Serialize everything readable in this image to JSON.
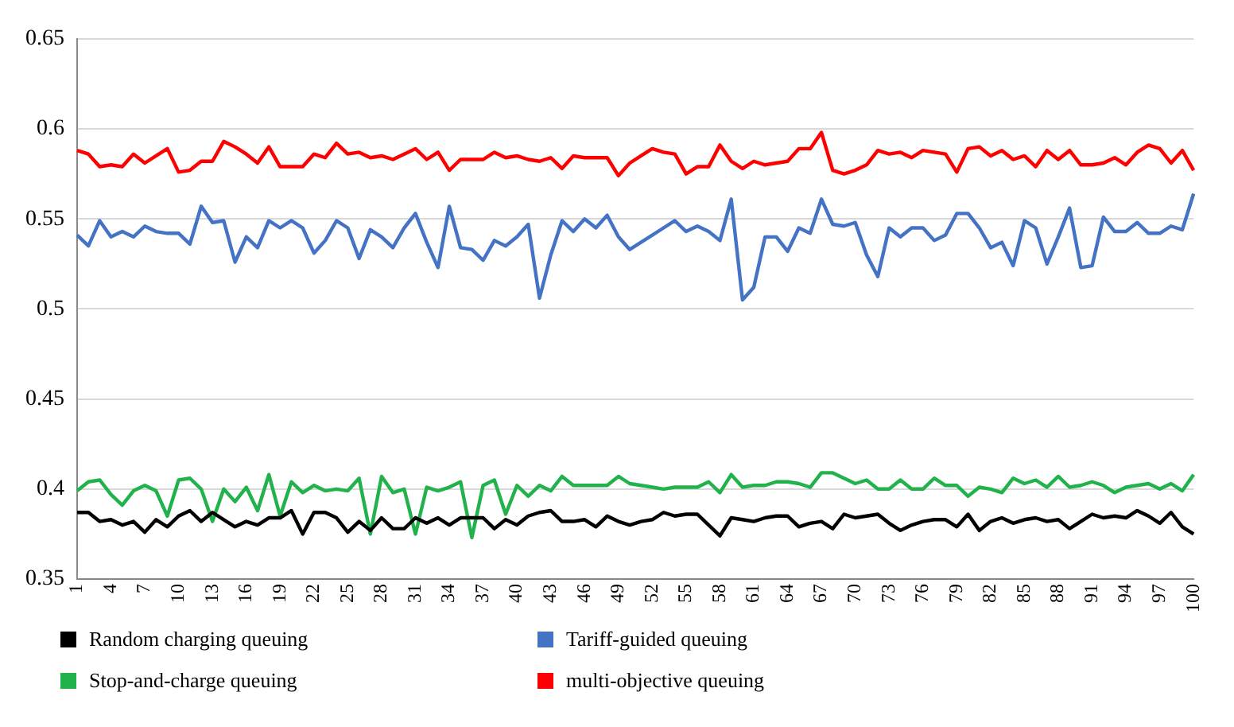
{
  "chart_data": {
    "type": "line",
    "categories": [
      "1",
      null,
      null,
      "4",
      null,
      null,
      "7",
      null,
      null,
      "10",
      null,
      null,
      "13",
      null,
      null,
      "16",
      null,
      null,
      "19",
      null,
      null,
      "22",
      null,
      null,
      "25",
      null,
      null,
      "28",
      null,
      null,
      "31",
      null,
      null,
      "34",
      null,
      null,
      "37",
      null,
      null,
      "40",
      null,
      null,
      "43",
      null,
      null,
      "46",
      null,
      null,
      "49",
      null,
      null,
      "52",
      null,
      null,
      "55",
      null,
      null,
      "58",
      null,
      null,
      "61",
      null,
      null,
      "64",
      null,
      null,
      "67",
      null,
      null,
      "70",
      null,
      null,
      "73",
      null,
      null,
      "76",
      null,
      null,
      "79",
      null,
      null,
      "82",
      null,
      null,
      "85",
      null,
      null,
      "88",
      null,
      null,
      "91",
      null,
      null,
      "94",
      null,
      null,
      "97",
      null,
      null,
      "100"
    ],
    "series": [
      {
        "name": "Random charging queuing",
        "color": "#000000",
        "values": [
          0.387,
          0.387,
          0.382,
          0.383,
          0.38,
          0.382,
          0.376,
          0.383,
          0.379,
          0.385,
          0.388,
          0.382,
          0.387,
          0.383,
          0.379,
          0.382,
          0.38,
          0.384,
          0.384,
          0.388,
          0.375,
          0.387,
          0.387,
          0.384,
          0.376,
          0.382,
          0.377,
          0.384,
          0.378,
          0.378,
          0.384,
          0.381,
          0.384,
          0.38,
          0.384,
          0.384,
          0.384,
          0.378,
          0.383,
          0.38,
          0.385,
          0.387,
          0.388,
          0.382,
          0.382,
          0.383,
          0.379,
          0.385,
          0.382,
          0.38,
          0.382,
          0.383,
          0.387,
          0.385,
          0.386,
          0.386,
          0.38,
          0.374,
          0.384,
          0.383,
          0.382,
          0.384,
          0.385,
          0.385,
          0.379,
          0.381,
          0.382,
          0.378,
          0.386,
          0.384,
          0.385,
          0.386,
          0.381,
          0.377,
          0.38,
          0.382,
          0.383,
          0.383,
          0.379,
          0.386,
          0.377,
          0.382,
          0.384,
          0.381,
          0.383,
          0.384,
          0.382,
          0.383,
          0.378,
          0.382,
          0.386,
          0.384,
          0.385,
          0.384,
          0.388,
          0.385,
          0.381,
          0.387,
          0.379,
          0.375
        ]
      },
      {
        "name": "Tariff-guided queuing",
        "color": "#4472c4",
        "values": [
          0.541,
          0.535,
          0.549,
          0.54,
          0.543,
          0.54,
          0.546,
          0.543,
          0.542,
          0.542,
          0.536,
          0.557,
          0.548,
          0.549,
          0.526,
          0.54,
          0.534,
          0.549,
          0.545,
          0.549,
          0.545,
          0.531,
          0.538,
          0.549,
          0.545,
          0.528,
          0.544,
          0.54,
          0.534,
          0.545,
          0.553,
          0.537,
          0.523,
          0.557,
          0.534,
          0.533,
          0.527,
          0.538,
          0.535,
          0.54,
          0.547,
          0.506,
          0.53,
          0.549,
          0.543,
          0.55,
          0.545,
          0.552,
          0.54,
          0.533,
          0.537,
          0.541,
          0.545,
          0.549,
          0.543,
          0.546,
          0.543,
          0.538,
          0.561,
          0.505,
          0.512,
          0.54,
          0.54,
          0.532,
          0.545,
          0.542,
          0.561,
          0.547,
          0.546,
          0.548,
          0.53,
          0.518,
          0.545,
          0.54,
          0.545,
          0.545,
          0.538,
          0.541,
          0.553,
          0.553,
          0.545,
          0.534,
          0.537,
          0.524,
          0.549,
          0.545,
          0.525,
          0.54,
          0.556,
          0.523,
          0.524,
          0.551,
          0.543,
          0.543,
          0.548,
          0.542,
          0.542,
          0.546,
          0.544,
          0.564
        ]
      },
      {
        "name": "Stop-and-charge queuing",
        "color": "#22b24c",
        "values": [
          0.399,
          0.404,
          0.405,
          0.397,
          0.391,
          0.399,
          0.402,
          0.399,
          0.385,
          0.405,
          0.406,
          0.4,
          0.382,
          0.4,
          0.393,
          0.401,
          0.388,
          0.408,
          0.385,
          0.404,
          0.398,
          0.402,
          0.399,
          0.4,
          0.399,
          0.406,
          0.375,
          0.407,
          0.398,
          0.4,
          0.375,
          0.401,
          0.399,
          0.401,
          0.404,
          0.373,
          0.402,
          0.405,
          0.386,
          0.402,
          0.396,
          0.402,
          0.399,
          0.407,
          0.402,
          0.402,
          0.402,
          0.402,
          0.407,
          0.403,
          0.402,
          0.401,
          0.4,
          0.401,
          0.401,
          0.401,
          0.404,
          0.398,
          0.408,
          0.401,
          0.402,
          0.402,
          0.404,
          0.404,
          0.403,
          0.401,
          0.409,
          0.409,
          0.406,
          0.403,
          0.405,
          0.4,
          0.4,
          0.405,
          0.4,
          0.4,
          0.406,
          0.402,
          0.402,
          0.396,
          0.401,
          0.4,
          0.398,
          0.406,
          0.403,
          0.405,
          0.401,
          0.407,
          0.401,
          0.402,
          0.404,
          0.402,
          0.398,
          0.401,
          0.402,
          0.403,
          0.4,
          0.403,
          0.399,
          0.408
        ]
      },
      {
        "name": "multi-objective queuing",
        "color": "#ff0000",
        "values": [
          0.588,
          0.586,
          0.579,
          0.58,
          0.579,
          0.586,
          0.581,
          0.585,
          0.589,
          0.576,
          0.577,
          0.582,
          0.582,
          0.593,
          0.59,
          0.586,
          0.581,
          0.59,
          0.579,
          0.579,
          0.579,
          0.586,
          0.584,
          0.592,
          0.586,
          0.587,
          0.584,
          0.585,
          0.583,
          0.586,
          0.589,
          0.583,
          0.587,
          0.577,
          0.583,
          0.583,
          0.583,
          0.587,
          0.584,
          0.585,
          0.583,
          0.582,
          0.584,
          0.578,
          0.585,
          0.584,
          0.584,
          0.584,
          0.574,
          0.581,
          0.585,
          0.589,
          0.587,
          0.586,
          0.575,
          0.579,
          0.579,
          0.591,
          0.582,
          0.578,
          0.582,
          0.58,
          0.581,
          0.582,
          0.589,
          0.589,
          0.598,
          0.577,
          0.575,
          0.577,
          0.58,
          0.588,
          0.586,
          0.587,
          0.584,
          0.588,
          0.587,
          0.586,
          0.576,
          0.589,
          0.59,
          0.585,
          0.588,
          0.583,
          0.585,
          0.579,
          0.588,
          0.583,
          0.588,
          0.58,
          0.58,
          0.581,
          0.584,
          0.58,
          0.587,
          0.591,
          0.589,
          0.581,
          0.588,
          0.577
        ]
      }
    ],
    "ylim": [
      0.35,
      0.65
    ],
    "yticks": [
      0.35,
      0.4,
      0.45,
      0.5,
      0.55,
      0.6,
      0.65
    ],
    "grid": "y",
    "legend": "bottom",
    "marker": "none",
    "line_style": "solid"
  }
}
